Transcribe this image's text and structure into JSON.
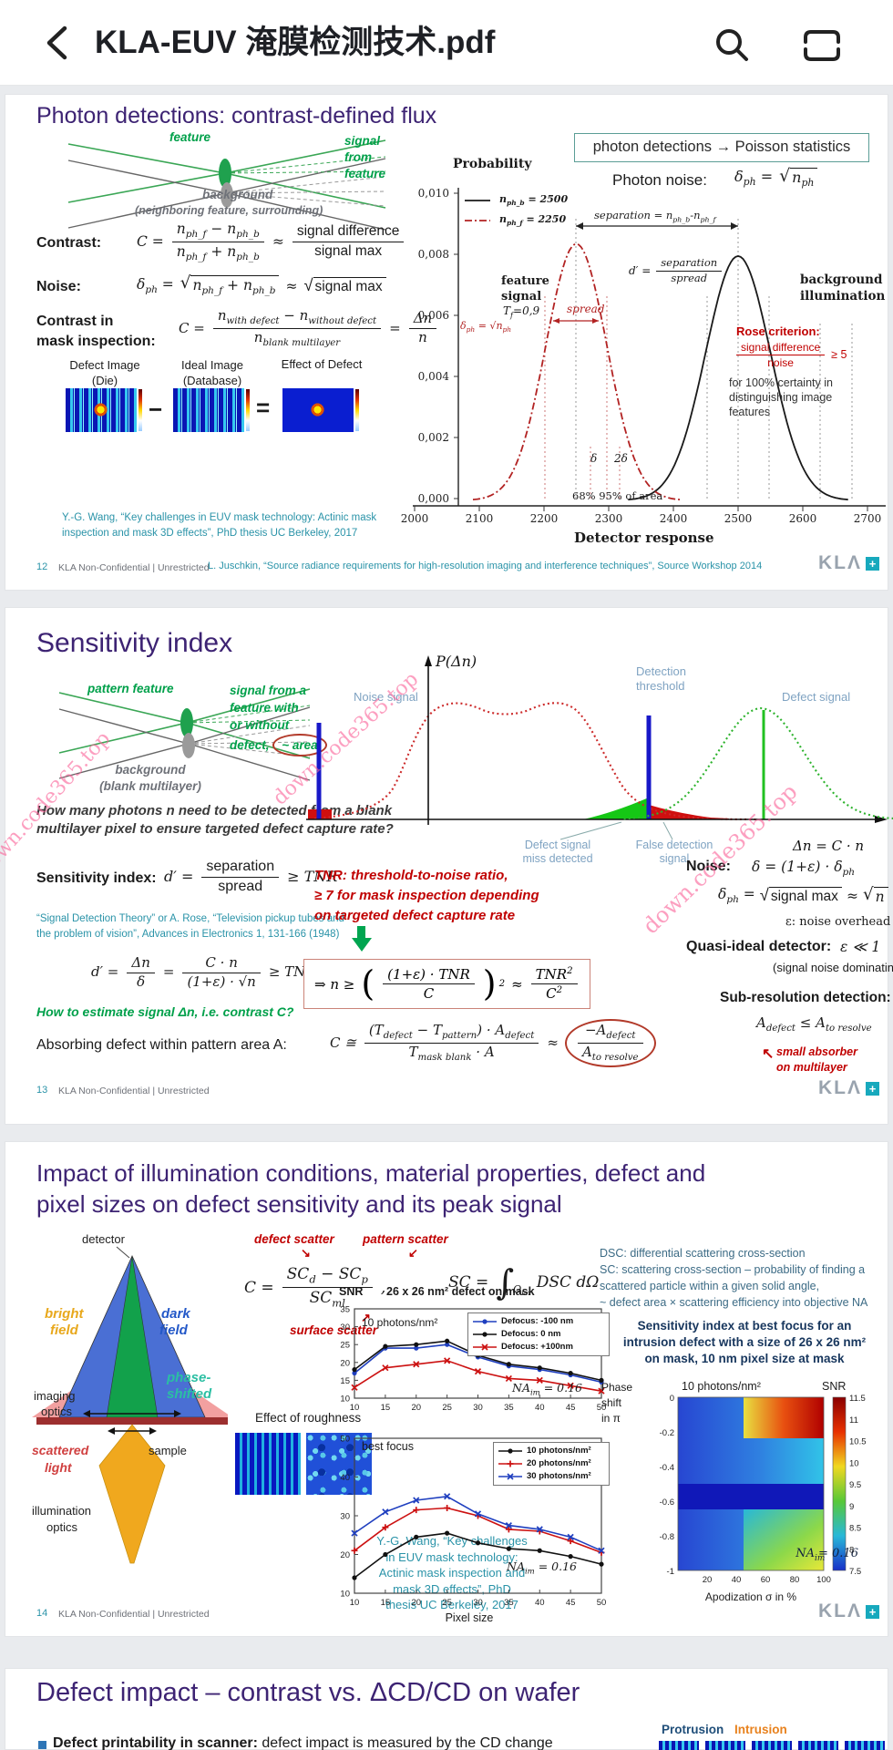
{
  "app_bar": {
    "title": "KLA-EUV 淹膜检测技术.pdf",
    "icons": {
      "back": "back-chevron",
      "search": "magnifier",
      "contents": "outline-beam"
    }
  },
  "footer": {
    "confidential": "KLA Non-Confidential | Unrestricted",
    "logo_text": "KLΛ",
    "logo_plus": "+"
  },
  "watermarks": {
    "w1": "own.code365.top",
    "w2": "down.code365.top",
    "w3": "down.code365.top"
  },
  "slide1": {
    "page": "12",
    "title": "Photon detections: contrast-defined flux",
    "diagram": {
      "feature": "feature",
      "signal1": "signal",
      "signal2": "from",
      "signal3": "feature",
      "bg1": "background",
      "bg2": "(neighboring feature, surrounding)"
    },
    "contrast": {
      "label": "Contrast:",
      "lhs_html": "C =",
      "num_html": "n<sub>ph_f</sub> − n<sub>ph_b</sub>",
      "den_html": "n<sub>ph_f</sub> + n<sub>ph_b</sub>",
      "approx": "≈",
      "num2": "signal difference",
      "den2": "signal max"
    },
    "noise": {
      "label": "Noise:",
      "lhs_html": "δ<sub>ph</sub> =",
      "sqrt1_html": "n<sub>ph_f</sub> + n<sub>ph_b</sub>",
      "approx": "≈",
      "sqrt2": "signal max"
    },
    "maskc": {
      "label1": "Contrast in",
      "label2": "mask inspection:",
      "lhs_html": "C =",
      "num_html": "n<sub>with defect</sub> − n<sub>without defect</sub>",
      "den_html": "n<sub>blank multilayer</sub>",
      "eq": "=",
      "num2_html": "Δn",
      "den2_html": "n"
    },
    "images": {
      "cap1a": "Defect Image",
      "cap1b": "(Die)",
      "cap2a": "Ideal Image",
      "cap2b": "(Database)",
      "cap3": "Effect of Defect",
      "minus": "−",
      "equals": "="
    },
    "wang": "Y.-G. Wang, “Key challenges in EUV mask technology: Actinic mask inspection and mask 3D effects”, PhD thesis UC Berkeley, 2017",
    "box": "photon detections → Poisson statistics",
    "photon_noise_label": "Photon noise:",
    "photon_noise_lhs_html": "δ<sub>ph</sub> =",
    "photon_noise_sqrt_html": "n<sub>ph</sub>",
    "chart": {
      "probability": "Probability",
      "legend1_html": "n<sub>ph_b</sub> = 2500",
      "legend2_html": "n<sub>ph_f</sub> = 2250",
      "separation_html": "separation = n<sub>ph_b</sub>-n<sub>ph_f</sub>",
      "dprime": "d′ =",
      "dnum": "separation",
      "dden": "spread",
      "feature1": "feature",
      "feature2": "signal",
      "tf_html": "T<sub>f</sub>=0,9",
      "spread": "spread",
      "deltaph_html": "δ<sub>ph</sub> = √n<sub>ph</sub>",
      "bg1": "background",
      "bg2": "illumination",
      "rose": "Rose criterion:",
      "rose_num": "signal difference",
      "rose_den": "noise",
      "rose_ge": "≥ 5",
      "rose_note1": "for 100% certainty in",
      "rose_note2": "distinguishing image",
      "rose_note3": "features",
      "delta1": "δ",
      "delta2": "2δ",
      "area": "68%  95% of area",
      "xlabel": "Detector response"
    },
    "juschkin": "L. Juschkin, “Source radiance requirements for high-resolution imaging and interference techniques”, Source Workshop 2014"
  },
  "slide2": {
    "page": "13",
    "title": "Sensitivity index",
    "diagram": {
      "pattern": "pattern feature",
      "s1": "signal from a",
      "s2": "feature with",
      "s3": "or without",
      "s4": "defect,",
      "s4b": "~ area",
      "bg1": "background",
      "bg2": "(blank multilayer)"
    },
    "q1": "How many photons n need to be detected from a blank",
    "q2": "multilayer pixel to ensure targeted defect capture rate?",
    "sens_label": "Sensitivity index:",
    "sens": {
      "lhs": "d′ =",
      "num": "separation",
      "den": "spread",
      "tail": "≥ TNR"
    },
    "rose_cit1": "“Signal Detection Theory” or A. Rose, “Television pickup tubes and",
    "rose_cit2": "the problem of vision”, Advances in Electronics 1, 131-166 (1948)",
    "d2": {
      "lhs": "d′ =",
      "n1": "Δn",
      "d1": "δ",
      "eq": "=",
      "n2": "C · n",
      "d2": "(1+ε) · √n",
      "tail": "≥ TNR"
    },
    "tnr1": "TNR: threshold-to-noise ratio,",
    "tnr2": "≥ 7 for mask inspection depending",
    "tnr3": "on targeted defect capture rate",
    "box": {
      "lhs": "⇒ n ≥",
      "num": "(1+ε) · TNR",
      "den": "C",
      "sup": "2",
      "approx": "≈",
      "num2_html": "TNR<sup>2</sup>",
      "den2_html": "C<sup>2</sup>"
    },
    "greenq": "How to estimate signal Δn, i.e. contrast C?",
    "absorbing": "Absorbing defect within pattern area A:",
    "abs": {
      "lhs": "C ≅",
      "num_html": "(T<sub>defect</sub> − T<sub>pattern</sub>) · A<sub>defect</sub>",
      "den_html": "T<sub>mask blank</sub> · A",
      "approx": "≈",
      "num2_html": "−A<sub>defect</sub>",
      "den2_html": "A<sub>to resolve</sub>"
    },
    "small1": "small absorber",
    "small2": "on multilayer",
    "arrow": "↖",
    "chartlabels": {
      "p": "P(Δn)",
      "noise": "Noise signal",
      "thr1": "Detection",
      "thr2": "threshold",
      "defect": "Defect signal",
      "miss1": "Defect signal",
      "miss2": "miss detected",
      "false1": "False detection",
      "false2": "signal",
      "dn": "Δn = C · n"
    },
    "noise_label": "Noise:",
    "noise1_html": "δ = (1+ε) · δ<sub>ph</sub>",
    "noise2": {
      "lhs_html": "δ<sub>ph</sub> =",
      "sq1": "signal max",
      "approx": "≈",
      "sq2": "n"
    },
    "eps": "ε:  noise overhead",
    "quasi": "Quasi-ideal detector:",
    "quasi_math": "ε ≪ 1",
    "dominating": "(signal noise dominating)",
    "subres": "Sub-resolution detection:",
    "adef_html": "A<sub>defect</sub> ≤ A<sub>to resolve</sub>"
  },
  "slide3": {
    "page": "14",
    "title1": "Impact of illumination conditions, material properties, defect and",
    "title2": "pixel sizes on defect sensitivity and its peak signal",
    "cone": {
      "detector": "detector",
      "bright1": "bright",
      "bright2": "field",
      "dark1": "dark",
      "dark2": "field",
      "phase1": "phase-",
      "phase2": "shifted",
      "imaging1": "imaging",
      "imaging2": "optics",
      "scattered1": "scattered",
      "scattered2": "light",
      "sample": "sample",
      "illum1": "illumination",
      "illum2": "optics"
    },
    "scatter": {
      "defect": "defect scatter",
      "pattern": "pattern scatter",
      "surface": "surface scatter",
      "a1": "↘",
      "a2": "↙",
      "a3": "↗"
    },
    "formulaC": {
      "lhs": "C =",
      "num_html": "SC<sub>d</sub> − SC<sub>p</sub>",
      "den_html": "SC<sub>ml</sub>",
      "comma": ","
    },
    "integral": {
      "lhs": "SC =",
      "sign": "∫",
      "sub_html": "Ω<sub>im</sub>",
      "body": "DSC dΩ"
    },
    "dsc": [
      "DSC: differential scattering cross-section",
      "SC: scattering cross-section – probability of finding a",
      "scattered particle within a given solid angle,",
      "~ defect area × scattering efficiency into objective NA"
    ],
    "roughness": "Effect of roughness",
    "wang": [
      "Y.-G. Wang, “Key challenges",
      "in EUV mask technology:",
      "Actinic mask inspection and",
      "mask 3D effects”, PhD",
      "thesis UC Berkeley, 2017"
    ],
    "charts": {
      "snr": "SNR",
      "title": "26 x 26 nm² defect on mask",
      "photons": "10 photons/nm²",
      "bestfocus": "best focus",
      "na_html": "NA<sub>im</sub> = 0.16",
      "pixel": "Pixel size"
    },
    "heatmap": {
      "title1": "Sensitivity index at best focus for an",
      "title2": "intrusion defect with a size of 26 x 26 nm²",
      "title3": "on mask, 10 nm pixel size at mask",
      "phase1": "Phase",
      "phase2": "shift",
      "phase3": "in π",
      "photons": "10 photons/nm²",
      "snr": "SNR",
      "yticks": [
        "0",
        "-0.2",
        "-0.4",
        "-0.6",
        "-0.8",
        "-1"
      ],
      "xticks": [
        "20",
        "40",
        "60",
        "80",
        "100"
      ],
      "cticks": [
        "11.5",
        "11",
        "10.5",
        "10",
        "9.5",
        "9",
        "8.5",
        "8",
        "7.5"
      ],
      "xlabel": "Apodization σ in %",
      "na_html": "NA<sub>im</sub> = 0.16"
    }
  },
  "slide4": {
    "title": "Defect impact – contrast vs. ΔCD/CD on wafer",
    "protrusion": "Protrusion",
    "intrusion": "Intrusion",
    "bullet_html": "<b>Defect printability in scanner:</b> defect impact is measured by the CD change"
  },
  "chart_data": [
    {
      "id": "photon-poisson",
      "type": "line",
      "title": "photon detections → Poisson statistics",
      "xlabel": "Detector response",
      "ylabel": "Probability",
      "xlim": [
        2000,
        2700
      ],
      "ylim": [
        0,
        0.01
      ],
      "xticks": [
        "2000",
        "2100",
        "2200",
        "2300",
        "2400",
        "2500",
        "2600",
        "2700"
      ],
      "yticks": [
        "0,010",
        "0,008",
        "0,006",
        "0,004",
        "0,002",
        "0,000"
      ],
      "series": [
        {
          "name": "n_ph_b = 2500",
          "center": 2500,
          "sigma": 50,
          "peak": 0.008,
          "color": "#1a1a1a",
          "dash": ""
        },
        {
          "name": "n_ph_f = 2250",
          "center": 2250,
          "sigma": 47,
          "peak": 0.0084,
          "color": "#b22222",
          "dash": "8 3 2 3"
        }
      ]
    },
    {
      "id": "snr-defocus",
      "type": "line",
      "title": "26 x 26 nm² defect on mask",
      "ylabel": "SNR",
      "xlabel": "",
      "annotation": "10 photons/nm²",
      "na": "NAim = 0.16",
      "x": [
        10,
        15,
        20,
        25,
        30,
        35,
        40,
        45,
        50
      ],
      "ylim": [
        10,
        35
      ],
      "yticks": [
        10,
        15,
        20,
        25,
        30,
        35
      ],
      "series": [
        {
          "name": "Defocus: -100 nm",
          "color": "#1f3fbf",
          "marker": "dot",
          "values": [
            17,
            24,
            24,
            25,
            21.5,
            19,
            18,
            16.5,
            14.5
          ]
        },
        {
          "name": "Defocus: 0 nm",
          "color": "#111111",
          "marker": "dot",
          "values": [
            18,
            24.5,
            25,
            26,
            22,
            19.5,
            18.5,
            17,
            15
          ]
        },
        {
          "name": "Defocus: +100nm",
          "color": "#cc1111",
          "marker": "x",
          "values": [
            13,
            18.5,
            19.5,
            20.5,
            17.5,
            15.5,
            15,
            13.5,
            12
          ]
        }
      ]
    },
    {
      "id": "snr-photons",
      "type": "line",
      "title": "best focus",
      "ylabel": "SNR",
      "xlabel": "Pixel size",
      "na": "NAim = 0.16",
      "x": [
        10,
        15,
        20,
        25,
        30,
        35,
        40,
        45,
        50
      ],
      "ylim": [
        10,
        50
      ],
      "yticks": [
        10,
        20,
        30,
        40,
        50
      ],
      "series": [
        {
          "name": "10 photons/nm²",
          "color": "#111111",
          "marker": "dot",
          "values": [
            14,
            20,
            24.5,
            25.5,
            23,
            21.5,
            21,
            19.5,
            17.5
          ]
        },
        {
          "name": "20 photons/nm²",
          "color": "#cc1111",
          "marker": "plus",
          "values": [
            21,
            27,
            31.5,
            32,
            30,
            26.5,
            26,
            23.5,
            20.5
          ]
        },
        {
          "name": "30 photons/nm²",
          "color": "#1f3fbf",
          "marker": "x",
          "values": [
            25.5,
            31,
            34,
            35,
            30.5,
            27.5,
            26.5,
            24.5,
            21
          ]
        }
      ]
    },
    {
      "id": "sensitivity-heatmap",
      "type": "heatmap",
      "xlabel": "Apodization σ in %",
      "ylabel": "Phase shift in π",
      "x_range": [
        0,
        100
      ],
      "y_range": [
        0,
        -1
      ],
      "colorbar_label": "SNR",
      "colorbar_range": [
        7.5,
        11.5
      ],
      "annotation": "10 photons/nm², NAim = 0.16"
    }
  ]
}
